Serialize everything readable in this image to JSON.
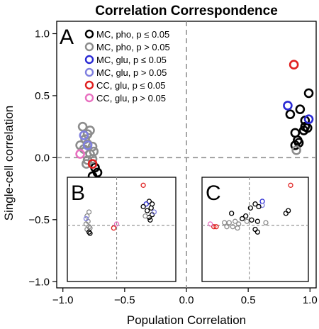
{
  "chart_data": {
    "type": "scatter",
    "title": "Correlation Correspondence",
    "xlabel": "Population Correlation",
    "ylabel": "Single-cell correlation",
    "xlim": [
      -1.05,
      1.05
    ],
    "ylim": [
      -1.05,
      1.1
    ],
    "xticks": [
      -1.0,
      -0.5,
      0.0,
      0.5,
      1.0
    ],
    "yticks": [
      -1.0,
      -0.5,
      0.0,
      0.5,
      1.0
    ],
    "xtick_labels": [
      "−1.0",
      "−0.5",
      "0.0",
      "0.5",
      "1.0"
    ],
    "ytick_labels": [
      "−1.0",
      "−0.5",
      "0.0",
      "0.5",
      "1.0"
    ],
    "grid": false,
    "reference_lines": {
      "x": 0,
      "y": 0,
      "style": "dashed"
    },
    "panel_label": "A",
    "legend_position": "top-left",
    "series": [
      {
        "name": "MC, pho, p ≤ 0.05",
        "color": "#000000",
        "x": [
          -0.72,
          -0.76,
          -0.74,
          0.92,
          0.96,
          0.88,
          0.99,
          0.95,
          0.96,
          0.84,
          0.91,
          0.88,
          0.9,
          0.98
        ],
        "y": [
          -0.12,
          -0.15,
          -0.08,
          0.39,
          0.25,
          0.2,
          0.52,
          0.22,
          0.3,
          0.35,
          0.12,
          0.1,
          0.14,
          0.24
        ]
      },
      {
        "name": "MC, pho, p > 0.05",
        "color": "#8c8c8c",
        "x": [
          -0.84,
          -0.8,
          -0.76,
          -0.82,
          -0.78,
          -0.86,
          -0.8,
          -0.76,
          -0.83,
          -0.8,
          -0.78,
          -0.75,
          -0.81,
          0.89
        ],
        "y": [
          0.25,
          0.19,
          0.09,
          0.15,
          0.03,
          0.1,
          -0.02,
          -0.01,
          0.07,
          0.11,
          0.22,
          0.05,
          -0.05,
          0.06
        ]
      },
      {
        "name": "MC, glu, p ≤ 0.05",
        "color": "#2a2ad4",
        "x": [
          0.82,
          0.99
        ],
        "y": [
          0.42,
          0.31
        ]
      },
      {
        "name": "MC, glu, p > 0.05",
        "color": "#8080e0",
        "x": [
          -0.83,
          -0.8
        ],
        "y": [
          0.18,
          0.1
        ]
      },
      {
        "name": "CC, glu, p ≤ 0.05",
        "color": "#e02020",
        "x": [
          0.87,
          -0.76
        ],
        "y": [
          0.75,
          -0.05
        ]
      },
      {
        "name": "CC, glu, p > 0.05",
        "color": "#e870c0",
        "x": [
          -0.86
        ],
        "y": [
          0.03
        ]
      }
    ],
    "insets": [
      {
        "label": "B",
        "x_ref": -0.55,
        "y_ref": -0.63,
        "xlim": [
          -1.05,
          0.05
        ],
        "ylim": [
          -1.05,
          -0.27
        ],
        "points": [
          {
            "x": -0.83,
            "y": -0.53,
            "s": 1
          },
          {
            "x": -0.85,
            "y": -0.56,
            "s": 1
          },
          {
            "x": -0.84,
            "y": -0.6,
            "s": 1
          },
          {
            "x": -0.86,
            "y": -0.62,
            "s": 1
          },
          {
            "x": -0.83,
            "y": -0.64,
            "s": 1
          },
          {
            "x": -0.85,
            "y": -0.66,
            "s": 1
          },
          {
            "x": -0.82,
            "y": -0.65,
            "s": 1
          },
          {
            "x": -0.86,
            "y": -0.58,
            "s": 3
          },
          {
            "x": -0.83,
            "y": -0.68,
            "s": 0
          },
          {
            "x": -0.82,
            "y": -0.69,
            "s": 0
          },
          {
            "x": -0.55,
            "y": -0.62,
            "s": 5
          },
          {
            "x": -0.58,
            "y": -0.65,
            "s": 4
          },
          {
            "x": -0.28,
            "y": -0.33,
            "s": 4
          },
          {
            "x": -0.22,
            "y": -0.45,
            "s": 0
          },
          {
            "x": -0.19,
            "y": -0.47,
            "s": 0
          },
          {
            "x": -0.25,
            "y": -0.47,
            "s": 2
          },
          {
            "x": -0.28,
            "y": -0.49,
            "s": 0
          },
          {
            "x": -0.2,
            "y": -0.5,
            "s": 0
          },
          {
            "x": -0.24,
            "y": -0.52,
            "s": 0
          },
          {
            "x": -0.19,
            "y": -0.55,
            "s": 0
          },
          {
            "x": -0.22,
            "y": -0.57,
            "s": 0
          },
          {
            "x": -0.26,
            "y": -0.56,
            "s": 1
          },
          {
            "x": -0.21,
            "y": -0.59,
            "s": 0
          },
          {
            "x": -0.17,
            "y": -0.53,
            "s": 3
          }
        ]
      },
      {
        "label": "C",
        "x_ref": 0.55,
        "y_ref": -0.63,
        "xlim": [
          0.15,
          1.05
        ],
        "ylim": [
          -1.05,
          -0.27
        ],
        "points": [
          {
            "x": 0.9,
            "y": -0.33,
            "s": 4
          },
          {
            "x": 0.66,
            "y": -0.45,
            "s": 2
          },
          {
            "x": 0.66,
            "y": -0.48,
            "s": 3
          },
          {
            "x": 0.6,
            "y": -0.47,
            "s": 0
          },
          {
            "x": 0.63,
            "y": -0.49,
            "s": 0
          },
          {
            "x": 0.56,
            "y": -0.5,
            "s": 0
          },
          {
            "x": 0.4,
            "y": -0.54,
            "s": 0
          },
          {
            "x": 0.88,
            "y": -0.52,
            "s": 0
          },
          {
            "x": 0.86,
            "y": -0.54,
            "s": 0
          },
          {
            "x": 0.52,
            "y": -0.56,
            "s": 0
          },
          {
            "x": 0.49,
            "y": -0.58,
            "s": 0
          },
          {
            "x": 0.53,
            "y": -0.6,
            "s": 1
          },
          {
            "x": 0.57,
            "y": -0.59,
            "s": 0
          },
          {
            "x": 0.62,
            "y": -0.6,
            "s": 0
          },
          {
            "x": 0.34,
            "y": -0.61,
            "s": 1
          },
          {
            "x": 0.38,
            "y": -0.61,
            "s": 1
          },
          {
            "x": 0.43,
            "y": -0.6,
            "s": 1
          },
          {
            "x": 0.46,
            "y": -0.62,
            "s": 1
          },
          {
            "x": 0.36,
            "y": -0.64,
            "s": 1
          },
          {
            "x": 0.41,
            "y": -0.64,
            "s": 1
          },
          {
            "x": 0.45,
            "y": -0.65,
            "s": 1
          },
          {
            "x": 0.69,
            "y": -0.61,
            "s": 1
          },
          {
            "x": 0.6,
            "y": -0.66,
            "s": 0
          },
          {
            "x": 0.62,
            "y": -0.68,
            "s": 0
          },
          {
            "x": 0.25,
            "y": -0.64,
            "s": 4
          },
          {
            "x": 0.27,
            "y": -0.64,
            "s": 4
          },
          {
            "x": 0.22,
            "y": -0.62,
            "s": 5
          }
        ]
      }
    ]
  }
}
